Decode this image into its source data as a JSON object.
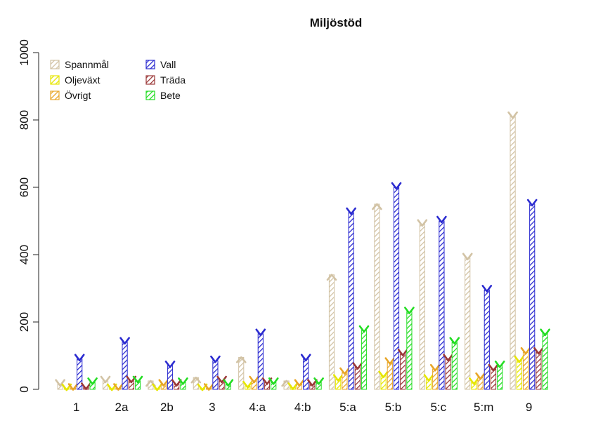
{
  "chart_data": {
    "type": "bar",
    "title": "Miljöstöd",
    "xlabel": "",
    "ylabel": "",
    "ylim": [
      0,
      1000
    ],
    "yticks": [
      0,
      200,
      400,
      600,
      800,
      1000
    ],
    "categories": [
      "1",
      "2a",
      "2b",
      "3",
      "4:a",
      "4:b",
      "5:a",
      "5:b",
      "5:c",
      "5:m",
      "9"
    ],
    "legend_position": "top-left",
    "grid": false,
    "series": [
      {
        "name": "Spannmål",
        "color": "#d2c3a5",
        "values": [
          15,
          25,
          25,
          35,
          95,
          25,
          340,
          550,
          490,
          390,
          810
        ]
      },
      {
        "name": "Oljeväxt",
        "color": "#e6e600",
        "values": [
          2,
          2,
          2,
          2,
          10,
          5,
          30,
          40,
          30,
          20,
          85
        ]
      },
      {
        "name": "Övrigt",
        "color": "#e8a628",
        "values": [
          3,
          3,
          15,
          3,
          25,
          15,
          50,
          80,
          60,
          35,
          110
        ]
      },
      {
        "name": "Vall",
        "color": "#2b2bd0",
        "values": [
          90,
          140,
          70,
          85,
          165,
          90,
          525,
          600,
          500,
          295,
          550
        ]
      },
      {
        "name": "Träda",
        "color": "#9b3838",
        "values": [
          5,
          25,
          15,
          25,
          20,
          15,
          65,
          105,
          90,
          60,
          110
        ]
      },
      {
        "name": "Bete",
        "color": "#22dd22",
        "values": [
          20,
          25,
          20,
          15,
          20,
          20,
          175,
          230,
          140,
          70,
          165
        ]
      }
    ]
  }
}
